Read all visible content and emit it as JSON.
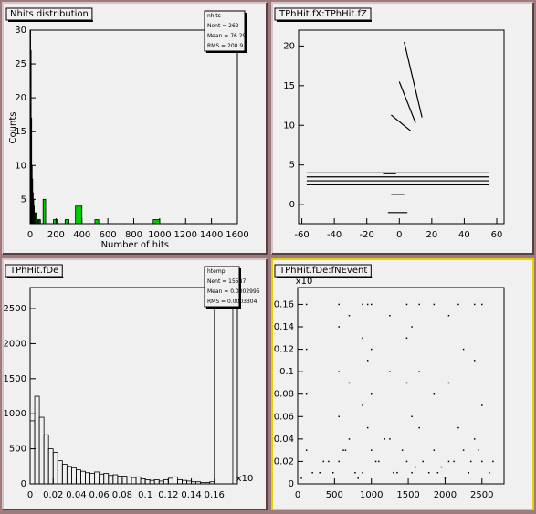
{
  "chart_data": [
    {
      "type": "histogram",
      "title": "Nhits distribution",
      "xlabel": "Number of hits",
      "ylabel": "Counts",
      "bins": [
        0,
        4,
        8,
        12,
        16,
        20,
        24,
        28,
        32,
        40,
        48,
        56,
        64,
        72,
        80,
        100,
        120,
        150,
        180,
        210,
        240,
        270,
        300,
        350,
        400,
        450,
        500,
        530,
        600,
        950,
        1000,
        1040,
        1600
      ],
      "counts": [
        30,
        27,
        17,
        10,
        8,
        6,
        5,
        4,
        3,
        3,
        2,
        2,
        2,
        2,
        1,
        5,
        1,
        0,
        2,
        0,
        1,
        2,
        0,
        4,
        0,
        0,
        2,
        0,
        0,
        2,
        0,
        0
      ],
      "color": "#00cc00",
      "filled": true,
      "xlim": [
        0,
        1600
      ],
      "xticks": [
        0,
        200,
        400,
        600,
        800,
        1000,
        1200,
        1400,
        1600
      ],
      "ylim": [
        1.4,
        30
      ],
      "yticks": [
        5,
        10,
        15,
        20,
        25,
        30
      ],
      "stats": [
        "nhits",
        "Nent = 262",
        "Mean = 76.29",
        "RMS = 208.9"
      ]
    },
    {
      "type": "line",
      "title": "TPhHit.fX:TPhHit.fZ",
      "series": [
        {
          "x": [
            -57,
            55
          ],
          "y": [
            4.0,
            4.0
          ]
        },
        {
          "x": [
            -57,
            55
          ],
          "y": [
            3.5,
            3.5
          ]
        },
        {
          "x": [
            -57,
            55
          ],
          "y": [
            3.0,
            3.0
          ]
        },
        {
          "x": [
            -57,
            55
          ],
          "y": [
            2.5,
            2.5
          ]
        },
        {
          "x": [
            -10,
            -2
          ],
          "y": [
            3.9,
            3.9
          ]
        },
        {
          "x": [
            -5,
            3
          ],
          "y": [
            1.3,
            1.3
          ]
        },
        {
          "x": [
            -7,
            5
          ],
          "y": [
            -1,
            -1
          ]
        },
        {
          "x": [
            3,
            14
          ],
          "y": [
            20.5,
            11
          ]
        },
        {
          "x": [
            0,
            10
          ],
          "y": [
            15.5,
            10.3
          ]
        },
        {
          "x": [
            -5,
            7
          ],
          "y": [
            11.3,
            9.3
          ]
        }
      ],
      "color": "#000000",
      "xlim": [
        -62,
        64.5
      ],
      "xticks": [
        -60,
        -40,
        -20,
        0,
        20,
        40,
        60
      ],
      "ylim": [
        -2.4,
        22
      ],
      "yticks": [
        0,
        5,
        10,
        15,
        20
      ]
    },
    {
      "type": "histogram",
      "title": "TPhHit.fDe",
      "x_exponent_label": "x10",
      "bins": [
        0,
        0.004,
        0.008,
        0.012,
        0.016,
        0.02,
        0.024,
        0.028,
        0.032,
        0.036,
        0.04,
        0.044,
        0.048,
        0.052,
        0.056,
        0.06,
        0.064,
        0.068,
        0.072,
        0.076,
        0.08,
        0.084,
        0.088,
        0.092,
        0.096,
        0.1,
        0.104,
        0.108,
        0.112,
        0.116,
        0.12,
        0.124,
        0.128,
        0.132,
        0.136,
        0.14,
        0.144,
        0.148,
        0.152,
        0.156,
        0.16,
        0.176,
        0.18
      ],
      "counts": [
        900,
        1250,
        950,
        700,
        500,
        450,
        330,
        280,
        250,
        230,
        200,
        180,
        160,
        150,
        170,
        140,
        150,
        120,
        130,
        110,
        110,
        100,
        90,
        100,
        70,
        60,
        50,
        60,
        40,
        60,
        80,
        100,
        60,
        50,
        40,
        30,
        30,
        20,
        20,
        30,
        3000,
        0
      ],
      "color": "#000000",
      "filled": false,
      "xlim": [
        0,
        0.18
      ],
      "xticks": [
        0,
        0.02,
        0.04,
        0.06,
        0.08,
        0.1,
        0.12,
        0.14,
        0.16
      ],
      "ylim": [
        0,
        2800
      ],
      "yticks": [
        0,
        500,
        1000,
        1500,
        2000,
        2500
      ],
      "stats": [
        "htemp",
        "Nent = 15587",
        "Mean = 0.0002995",
        "RMS = 0.0003304"
      ]
    },
    {
      "type": "scatter",
      "title": "TPhHit.fDe:fNEvent",
      "y_exponent_label": "x10",
      "selected": true,
      "x": [
        120,
        120,
        120,
        120,
        560,
        560,
        560,
        560,
        560,
        700,
        700,
        700,
        880,
        880,
        880,
        880,
        950,
        950,
        950,
        1000,
        1000,
        1000,
        1000,
        1250,
        1250,
        1250,
        1480,
        1480,
        1480,
        1480,
        1550,
        1550,
        1550,
        1650,
        1650,
        1650,
        1850,
        1850,
        1850,
        2050,
        2050,
        2050,
        2180,
        2180,
        2250,
        2250,
        2400,
        2400,
        2400,
        2500,
        2500,
        2500,
        300,
        420,
        650,
        780,
        1100,
        1180,
        1350,
        1420,
        1700,
        1780,
        1950,
        2120,
        2320,
        2450,
        2600,
        2650,
        50,
        200,
        350,
        480,
        620,
        820,
        1060,
        1300,
        1600,
        1900,
        2000,
        2350
      ],
      "y": [
        0.16,
        0.12,
        0.08,
        0.03,
        0.16,
        0.14,
        0.1,
        0.06,
        0.02,
        0.15,
        0.09,
        0.04,
        0.16,
        0.13,
        0.07,
        0.01,
        0.16,
        0.11,
        0.05,
        0.16,
        0.12,
        0.08,
        0.03,
        0.15,
        0.1,
        0.04,
        0.16,
        0.13,
        0.09,
        0.02,
        0.14,
        0.06,
        0.01,
        0.16,
        0.1,
        0.05,
        0.16,
        0.08,
        0.03,
        0.15,
        0.09,
        0.02,
        0.16,
        0.05,
        0.12,
        0.03,
        0.16,
        0.11,
        0.04,
        0.16,
        0.07,
        0.02,
        0.01,
        0.02,
        0.03,
        0.01,
        0.02,
        0.04,
        0.01,
        0.03,
        0.02,
        0.01,
        0.015,
        0.02,
        0.01,
        0.03,
        0.01,
        0.02,
        0.005,
        0.01,
        0.02,
        0.01,
        0.03,
        0.005,
        0.02,
        0.01,
        0.015,
        0.01,
        0.005,
        0.02
      ],
      "color": "#000000",
      "xlim": [
        0,
        2800
      ],
      "xticks": [
        0,
        500,
        1000,
        1500,
        2000,
        2500
      ],
      "ylim": [
        0,
        0.175
      ],
      "yticks": [
        0,
        0.02,
        0.04,
        0.06,
        0.08,
        0.1,
        0.12,
        0.14,
        0.16
      ]
    }
  ]
}
